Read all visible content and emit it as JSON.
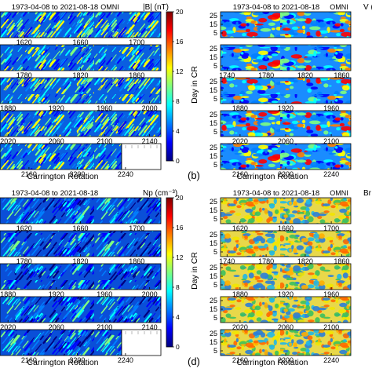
{
  "chart_data": [
    {
      "type": "heatmap",
      "quadrant": "top-left",
      "header": "1973-04-08 to 2021-08-18",
      "source": "OMNI",
      "quantity": "|B| (nT)",
      "xlabel": "Carrington Rotation",
      "ylabel": "",
      "colorbar": {
        "ticks": [
          "20",
          "16",
          "12",
          "8",
          "4",
          "0"
        ],
        "range": [
          0,
          20
        ]
      },
      "rows": [
        {
          "ticks": [
            "1620",
            "1660",
            "1700"
          ]
        },
        {
          "ticks": [
            "1780",
            "1820",
            "1860"
          ]
        },
        {
          "ticks": [
            "1880",
            "1920",
            "1960",
            "2000"
          ]
        },
        {
          "ticks": [
            "2020",
            "2060",
            "2100",
            "2140"
          ]
        },
        {
          "ticks": [
            "2160",
            "2200",
            "2240"
          ]
        }
      ],
      "day_ticks": []
    },
    {
      "type": "heatmap",
      "quadrant": "top-right",
      "header": "1973-04-08 to 2021-08-18",
      "source": "OMNI",
      "quantity": "V (",
      "panel_label": "(b)",
      "xlabel": "Carrington Rotation",
      "ylabel": "Day in CR",
      "rows": [
        {
          "ticks": []
        },
        {
          "ticks": [
            "1740",
            "1780",
            "1820",
            "1860"
          ]
        },
        {
          "ticks": [
            "1880",
            "1920",
            "1960"
          ]
        },
        {
          "ticks": [
            "2020",
            "2060",
            "2100"
          ]
        },
        {
          "ticks": [
            "2160",
            "2200",
            "2240"
          ]
        }
      ],
      "day_ticks": [
        "25",
        "15",
        "5"
      ]
    },
    {
      "type": "heatmap",
      "quadrant": "bottom-left",
      "header": "1973-04-08 to 2021-08-18",
      "source": "",
      "quantity": "Np (cm⁻³)",
      "xlabel": "Carrington Rotation",
      "ylabel": "",
      "colorbar": {
        "ticks": [
          "20",
          "16",
          "12",
          "8",
          "4",
          "0"
        ],
        "range": [
          0,
          20
        ]
      },
      "rows": [
        {
          "ticks": [
            "1620",
            "1660",
            "1700"
          ]
        },
        {
          "ticks": [
            "1780",
            "1820",
            "1860"
          ]
        },
        {
          "ticks": [
            "1880",
            "1920",
            "1960",
            "2000"
          ]
        },
        {
          "ticks": [
            "2020",
            "2060",
            "2100",
            "2140"
          ]
        },
        {
          "ticks": [
            "2160",
            "2200",
            "2240"
          ]
        }
      ],
      "day_ticks": []
    },
    {
      "type": "heatmap",
      "quadrant": "bottom-right",
      "header": "1973-04-08 to 2021-08-18",
      "source": "OMNI",
      "quantity": "Br",
      "panel_label": "(d)",
      "xlabel": "Carrington Rotation",
      "ylabel": "Day in CR",
      "rows": [
        {
          "ticks": [
            "1620",
            "1660",
            "1700"
          ]
        },
        {
          "ticks": [
            "1740",
            "1780",
            "1820",
            "1860"
          ]
        },
        {
          "ticks": [
            "1880",
            "1920",
            "1960"
          ]
        },
        {
          "ticks": [
            "2020",
            "2060",
            "2100"
          ]
        },
        {
          "ticks": [
            "2160",
            "2200",
            "2240"
          ]
        }
      ],
      "day_ticks": [
        "25",
        "15",
        "5"
      ]
    }
  ],
  "colors": {
    "jet": [
      "#00007f",
      "#0000ff",
      "#007fff",
      "#00ffff",
      "#7fff7f",
      "#ffff00",
      "#ff7f00",
      "#ff0000",
      "#7f0000"
    ]
  }
}
